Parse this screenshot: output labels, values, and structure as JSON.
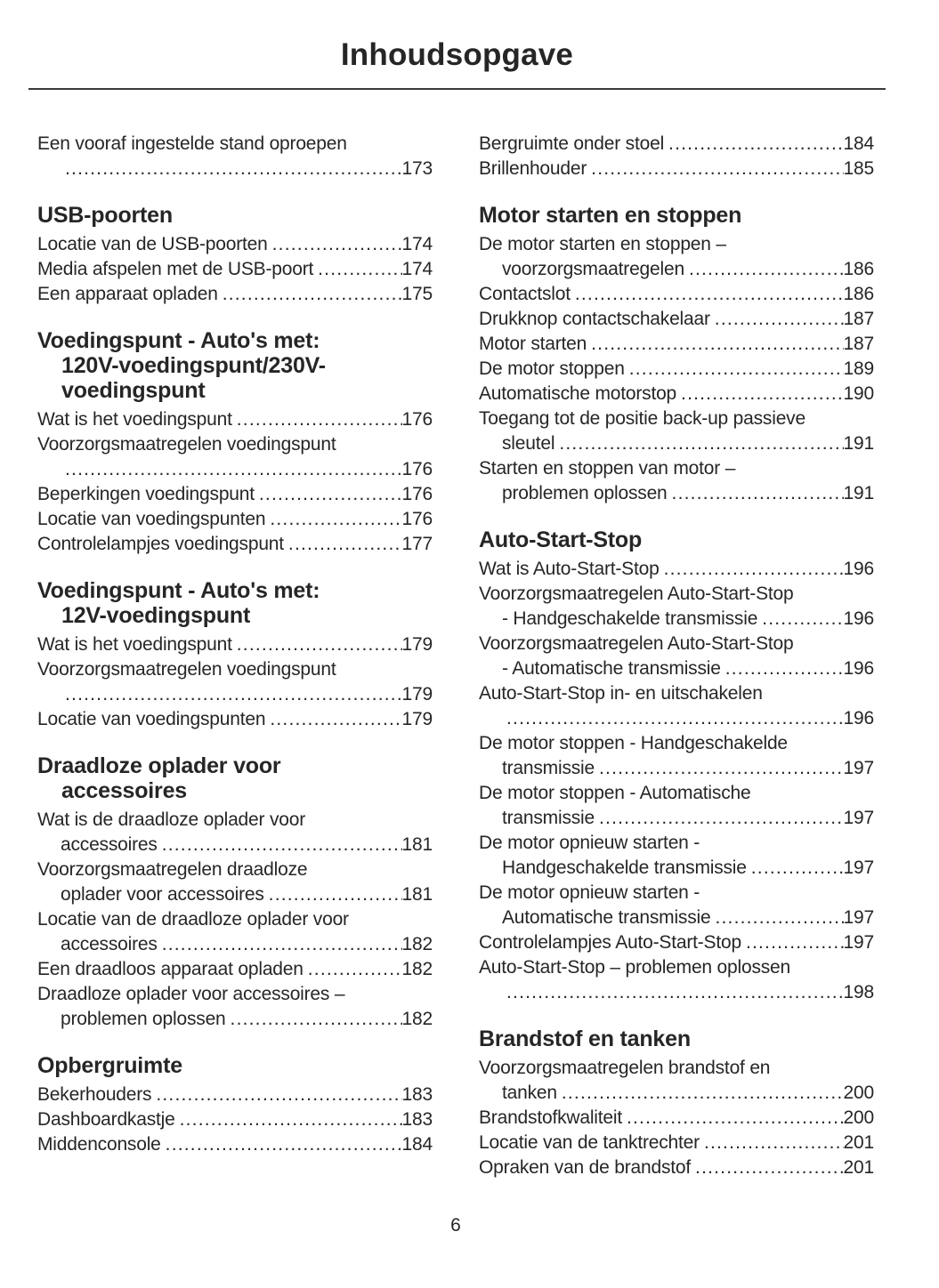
{
  "title": "Inhoudsopgave",
  "colors": {
    "text": "#262626",
    "rule": "#3a3a3a"
  },
  "footer": {
    "page_number": "6"
  },
  "columns": [
    {
      "blocks": [
        {
          "heading": null,
          "entries": [
            {
              "line1": "Een vooraf ingestelde stand oproepen",
              "line2": "",
              "page": "173"
            }
          ]
        },
        {
          "heading": [
            "USB-poorten"
          ],
          "entries": [
            {
              "line1": "Locatie van de USB-poorten",
              "page": "174"
            },
            {
              "line1": "Media afspelen met de USB-poort",
              "page": "174"
            },
            {
              "line1": "Een apparaat opladen",
              "page": "175"
            }
          ]
        },
        {
          "heading": [
            "Voedingspunt - Auto's met:",
            "120V-voedingspunt/230V-",
            "voedingspunt"
          ],
          "entries": [
            {
              "line1": "Wat is het voedingspunt",
              "page": "176"
            },
            {
              "line1": "Voorzorgsmaatregelen voedingspunt",
              "line2": "",
              "page": "176"
            },
            {
              "line1": "Beperkingen voedingspunt",
              "page": "176"
            },
            {
              "line1": "Locatie van voedingspunten",
              "page": "176"
            },
            {
              "line1": "Controlelampjes voedingspunt",
              "page": "177"
            }
          ]
        },
        {
          "heading": [
            "Voedingspunt - Auto's met:",
            "12V-voedingspunt"
          ],
          "entries": [
            {
              "line1": "Wat is het voedingspunt",
              "page": "179"
            },
            {
              "line1": "Voorzorgsmaatregelen voedingspunt",
              "line2": "",
              "page": "179"
            },
            {
              "line1": "Locatie van voedingspunten",
              "page": "179"
            }
          ]
        },
        {
          "heading": [
            "Draadloze oplader voor",
            "accessoires"
          ],
          "entries": [
            {
              "line1": "Wat is de draadloze oplader voor",
              "line2": "accessoires",
              "page": "181"
            },
            {
              "line1": "Voorzorgsmaatregelen draadloze",
              "line2": "oplader voor accessoires",
              "page": "181"
            },
            {
              "line1": "Locatie van de draadloze oplader voor",
              "line2": "accessoires",
              "page": "182"
            },
            {
              "line1": "Een draadloos apparaat opladen",
              "page": "182"
            },
            {
              "line1": "Draadloze oplader voor accessoires –",
              "line2": "problemen oplossen",
              "page": "182"
            }
          ]
        },
        {
          "heading": [
            "Opbergruimte"
          ],
          "entries": [
            {
              "line1": "Bekerhouders",
              "page": "183"
            },
            {
              "line1": "Dashboardkastje",
              "page": "183"
            },
            {
              "line1": "Middenconsole",
              "page": "184"
            }
          ]
        }
      ]
    },
    {
      "blocks": [
        {
          "heading": null,
          "entries": [
            {
              "line1": "Bergruimte onder stoel",
              "page": "184"
            },
            {
              "line1": "Brillenhouder",
              "page": "185"
            }
          ]
        },
        {
          "heading": [
            "Motor starten en stoppen"
          ],
          "entries": [
            {
              "line1": "De motor starten en stoppen –",
              "line2": "voorzorgsmaatregelen",
              "page": "186"
            },
            {
              "line1": "Contactslot",
              "page": "186"
            },
            {
              "line1": "Drukknop contactschakelaar",
              "page": "187"
            },
            {
              "line1": "Motor starten",
              "page": "187"
            },
            {
              "line1": "De motor stoppen",
              "page": "189"
            },
            {
              "line1": "Automatische motorstop",
              "page": "190"
            },
            {
              "line1": "Toegang tot de positie back-up passieve",
              "line2": "sleutel",
              "page": "191"
            },
            {
              "line1": "Starten en stoppen van motor –",
              "line2": "problemen oplossen",
              "page": "191"
            }
          ]
        },
        {
          "heading": [
            "Auto-Start-Stop"
          ],
          "entries": [
            {
              "line1": "Wat is Auto-Start-Stop",
              "page": "196"
            },
            {
              "line1": "Voorzorgsmaatregelen Auto-Start-Stop",
              "line2": "- Handgeschakelde transmissie",
              "page": "196"
            },
            {
              "line1": "Voorzorgsmaatregelen Auto-Start-Stop",
              "line2": "- Automatische transmissie",
              "page": "196"
            },
            {
              "line1": "Auto-Start-Stop in- en uitschakelen",
              "line2": "",
              "page": "196"
            },
            {
              "line1": "De motor stoppen - Handgeschakelde",
              "line2": "transmissie",
              "page": "197"
            },
            {
              "line1": "De motor stoppen - Automatische",
              "line2": "transmissie",
              "page": "197"
            },
            {
              "line1": "De motor opnieuw starten -",
              "line2": "Handgeschakelde transmissie",
              "page": "197"
            },
            {
              "line1": "De motor opnieuw starten -",
              "line2": "Automatische transmissie",
              "page": "197"
            },
            {
              "line1": "Controlelampjes Auto-Start-Stop",
              "page": "197"
            },
            {
              "line1": "Auto-Start-Stop – problemen oplossen",
              "line2": "",
              "page": "198"
            }
          ]
        },
        {
          "heading": [
            "Brandstof en tanken"
          ],
          "entries": [
            {
              "line1": "Voorzorgsmaatregelen brandstof en",
              "line2": "tanken",
              "page": "200"
            },
            {
              "line1": "Brandstofkwaliteit",
              "page": "200"
            },
            {
              "line1": "Locatie van de tanktrechter",
              "page": "201"
            },
            {
              "line1": "Opraken van de brandstof",
              "page": "201"
            }
          ]
        }
      ]
    }
  ]
}
